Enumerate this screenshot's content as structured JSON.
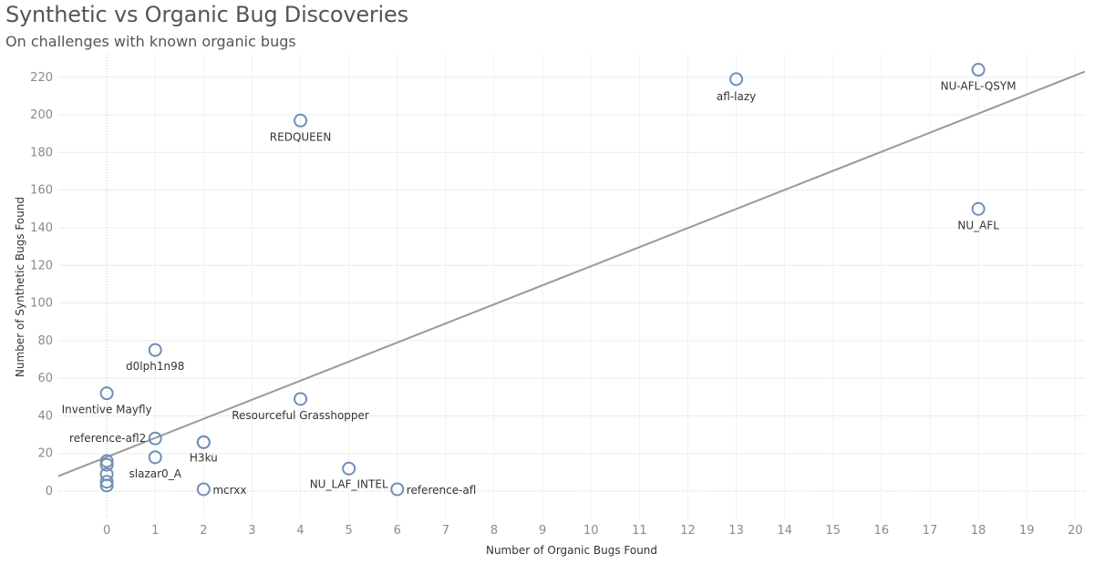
{
  "header": {
    "title": "Synthetic vs Organic Bug Discoveries",
    "subtitle": "On challenges with known organic bugs"
  },
  "chart_data": {
    "type": "scatter",
    "title": "Synthetic vs Organic Bug Discoveries",
    "subtitle": "On challenges with known organic bugs",
    "xlabel": "Number of Organic Bugs Found",
    "ylabel": "Number of Synthetic Bugs Found",
    "xlim": [
      -1,
      20.2
    ],
    "ylim": [
      -15,
      232
    ],
    "xticks": [
      0,
      1,
      2,
      3,
      4,
      5,
      6,
      7,
      8,
      9,
      10,
      11,
      12,
      13,
      14,
      15,
      16,
      17,
      18,
      19,
      20
    ],
    "yticks": [
      0,
      20,
      40,
      60,
      80,
      100,
      120,
      140,
      160,
      180,
      200,
      220
    ],
    "grid": true,
    "marker_color": "#6f8fb5",
    "trend_color": "#999999",
    "trend_line": {
      "start": [
        -1,
        8
      ],
      "end": [
        20.2,
        223
      ]
    },
    "points": [
      {
        "x": 18,
        "y": 224,
        "label": "NU-AFL-QSYM",
        "anchor": "middle",
        "dy": 22
      },
      {
        "x": 13,
        "y": 219,
        "label": "afl-lazy",
        "anchor": "middle",
        "dy": 23
      },
      {
        "x": 4,
        "y": 197,
        "label": "REDQUEEN",
        "anchor": "middle",
        "dy": 22
      },
      {
        "x": 18,
        "y": 150,
        "label": "NU_AFL",
        "anchor": "middle",
        "dy": 22
      },
      {
        "x": 1,
        "y": 75,
        "label": "d0lph1n98",
        "anchor": "middle",
        "dy": 22
      },
      {
        "x": 0,
        "y": 52,
        "label": "Inventive Mayfly",
        "anchor": "middle",
        "dy": 22
      },
      {
        "x": 4,
        "y": 49,
        "label": "Resourceful Grasshopper",
        "anchor": "middle",
        "dy": 22
      },
      {
        "x": 1,
        "y": 28,
        "label": "reference-afl2",
        "anchor": "end",
        "dx": -10,
        "dy": 4
      },
      {
        "x": 2,
        "y": 26,
        "label": "H3ku",
        "anchor": "middle",
        "dx": 0,
        "dy": 21
      },
      {
        "x": 2,
        "y": 26,
        "label": "",
        "anchor": "middle"
      },
      {
        "x": 1,
        "y": 18,
        "label": "slazar0_A",
        "anchor": "middle",
        "dy": 22
      },
      {
        "x": 5,
        "y": 12,
        "label": "NU_LAF_INTEL",
        "anchor": "middle",
        "dy": 21
      },
      {
        "x": 6,
        "y": 1,
        "label": "reference-afl",
        "anchor": "start",
        "dx": 10,
        "dy": 5
      },
      {
        "x": 2,
        "y": 1,
        "label": "mcrxx",
        "anchor": "start",
        "dx": 10,
        "dy": 5
      },
      {
        "x": 0,
        "y": 16,
        "label": "",
        "anchor": "middle"
      },
      {
        "x": 0,
        "y": 14,
        "label": "",
        "anchor": "middle"
      },
      {
        "x": 0,
        "y": 9,
        "label": "",
        "anchor": "middle"
      },
      {
        "x": 0,
        "y": 5,
        "label": "",
        "anchor": "middle"
      },
      {
        "x": 0,
        "y": 3,
        "label": "",
        "anchor": "middle"
      }
    ]
  }
}
